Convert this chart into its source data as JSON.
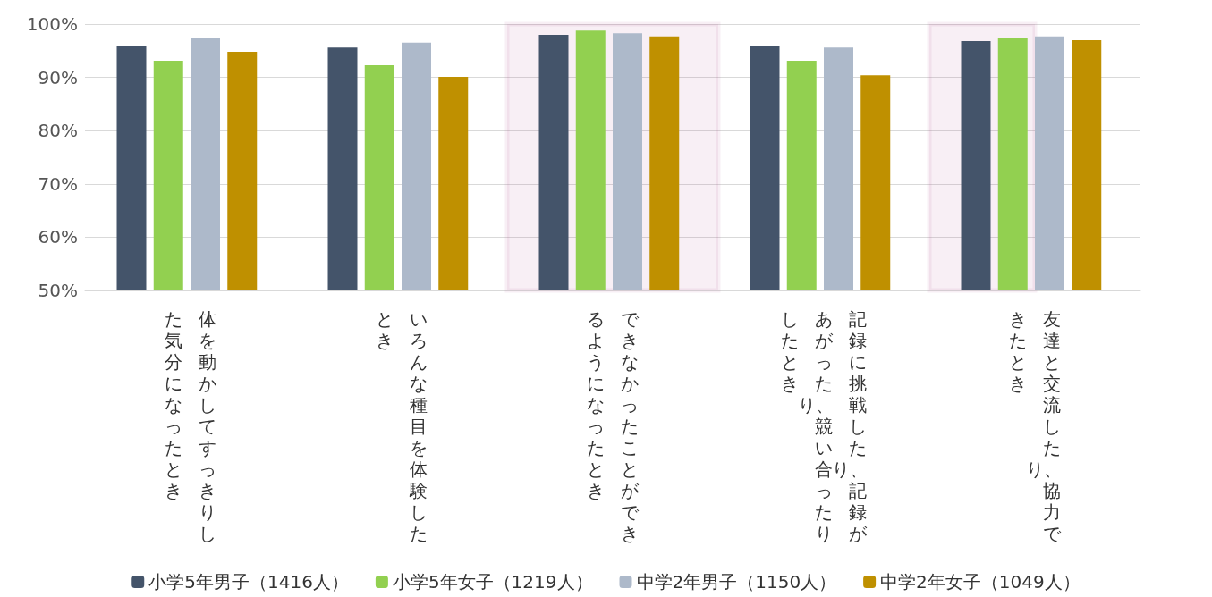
{
  "chart_data": {
    "type": "bar",
    "categories": [
      "体を動かしてすっきりした気分になったとき",
      "いろんな種目を体験したとき",
      "できなかったことができるようになったとき",
      "記録に挑戦したり、記録があがったり、競い合ったりしたとき",
      "友達と交流したり、協力できたとき"
    ],
    "series": [
      {
        "name": "小学5年男子（1416人）",
        "color": "#44546a",
        "values": [
          95.8,
          95.6,
          98.0,
          95.8,
          96.8
        ]
      },
      {
        "name": "小学5年女子（1219人）",
        "color": "#92d050",
        "values": [
          93.1,
          92.3,
          98.8,
          93.1,
          97.3
        ]
      },
      {
        "name": "中学2年男子（1150人）",
        "color": "#adb9ca",
        "values": [
          97.5,
          96.5,
          98.3,
          95.6,
          97.7
        ]
      },
      {
        "name": "中学2年女子（1049人）",
        "color": "#bf9000",
        "values": [
          94.8,
          90.1,
          97.7,
          90.4,
          97.0
        ]
      }
    ],
    "ylim": [
      50,
      100
    ],
    "yticks": [
      {
        "value": 50,
        "label": "50%"
      },
      {
        "value": 60,
        "label": "60%"
      },
      {
        "value": 70,
        "label": "70%"
      },
      {
        "value": 80,
        "label": "80%"
      },
      {
        "value": 90,
        "label": "90%"
      },
      {
        "value": 100,
        "label": "100%"
      }
    ],
    "grid": "y",
    "legend": "bottom",
    "bands": [
      {
        "axis": "x",
        "from": "できなかったことができるようになったとき",
        "to": "できなかったことができるようになったとき",
        "color": "#a8327a"
      },
      {
        "axis": "x",
        "from": "友達と交流したり、協力できたとき",
        "to": "友達と交流したり、協力できたとき",
        "color": "#a8327a"
      }
    ]
  }
}
